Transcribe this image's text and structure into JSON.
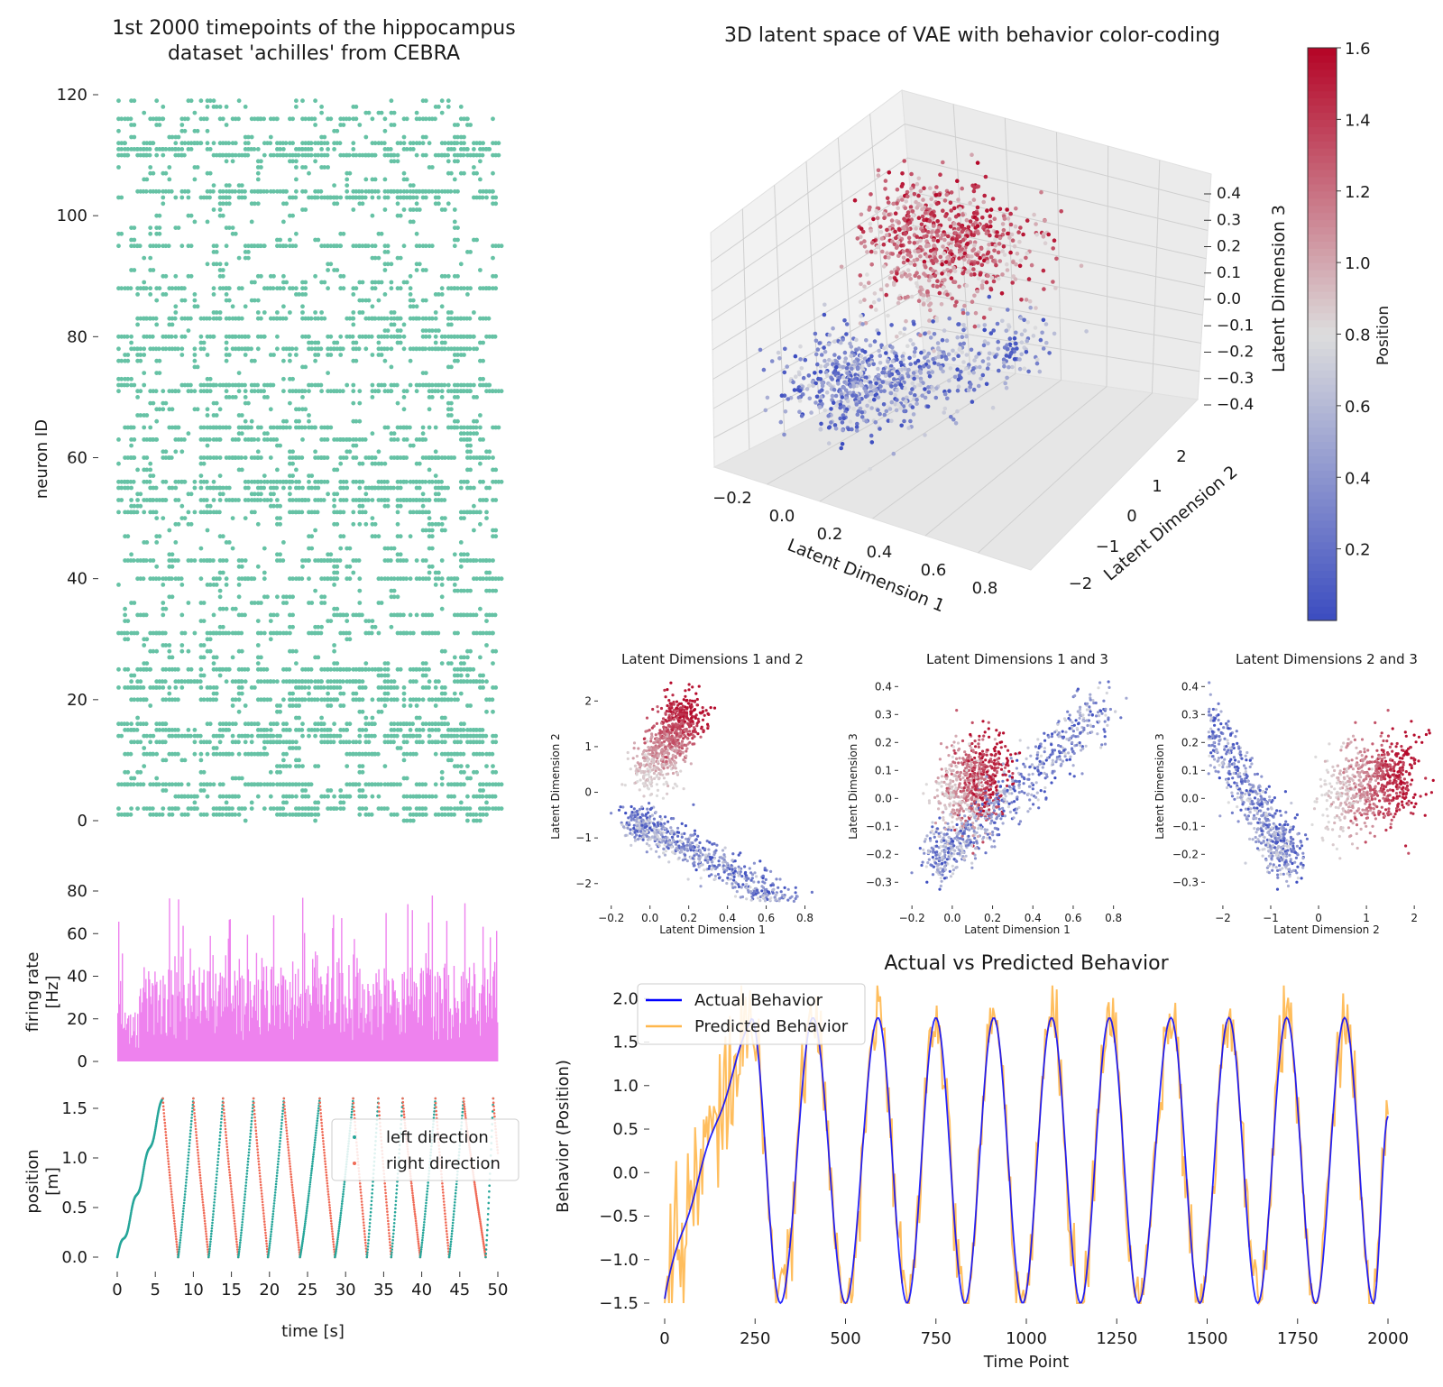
{
  "colors": {
    "raster": "#66c2a5",
    "firing": "#ee82ee",
    "left_direction": "#26a69a",
    "right_direction": "#f06b57",
    "actual": "#0000ff",
    "predicted": "#ffb74d",
    "cmap_low": "#3b4cc0",
    "cmap_mid": "#dddddd",
    "cmap_high": "#b40426"
  },
  "chart_data": [
    {
      "id": "raster",
      "type": "scatter",
      "title": "1st 2000 timepoints of the hippocampus\ndataset 'achilles' from CEBRA",
      "title_lines": [
        "1st 2000 timepoints of the hippocampus",
        "dataset 'achilles' from CEBRA"
      ],
      "xlabel": "",
      "ylabel": "neuron ID",
      "xlim": [
        0,
        50
      ],
      "ylim": [
        0,
        120
      ],
      "yticks": [
        0,
        20,
        40,
        60,
        80,
        100,
        120
      ],
      "ytick_labels": [
        "0",
        "20",
        "40",
        "60",
        "80",
        "100",
        "120"
      ],
      "dense_neurons": [
        1,
        2,
        4,
        6,
        11,
        13,
        14,
        15,
        16,
        20,
        22,
        23,
        25,
        31,
        34,
        40,
        43,
        51,
        53,
        55,
        56,
        60,
        63,
        65,
        71,
        72,
        78,
        80,
        83,
        88,
        95,
        103,
        104,
        110,
        111,
        112,
        116
      ],
      "sparse_neurons": [
        0,
        3,
        5,
        7,
        8,
        9,
        10,
        12,
        17,
        18,
        19,
        21,
        24,
        26,
        27,
        28,
        29,
        30,
        32,
        33,
        35,
        36,
        37,
        38,
        39,
        41,
        42,
        44,
        45,
        46,
        47,
        48,
        49,
        50,
        52,
        54,
        57,
        58,
        59,
        61,
        62,
        64,
        66,
        67,
        68,
        69,
        70,
        73,
        74,
        75,
        76,
        77,
        79,
        81,
        82,
        84,
        85,
        86,
        87,
        89,
        90,
        91,
        92,
        93,
        94,
        96,
        97,
        98,
        99,
        100,
        101,
        102,
        105,
        106,
        107,
        108,
        109,
        113,
        114,
        115,
        117,
        118,
        119
      ]
    },
    {
      "id": "firing",
      "type": "bar",
      "ylabel_lines": [
        "firing rate",
        "[Hz]"
      ],
      "xlim": [
        0,
        50
      ],
      "ylim": [
        0,
        80
      ],
      "yticks": [
        0,
        20,
        40,
        60,
        80
      ],
      "ytick_labels": [
        "0",
        "20",
        "40",
        "60",
        "80"
      ],
      "baseline_range_hz": [
        10,
        45
      ],
      "peak_hz": 78
    },
    {
      "id": "position",
      "type": "scatter",
      "xlabel": "time [s]",
      "ylabel_lines": [
        "position",
        "[m]"
      ],
      "xlim": [
        0,
        50
      ],
      "ylim": [
        0,
        1.6
      ],
      "xticks": [
        0,
        5,
        10,
        15,
        20,
        25,
        30,
        35,
        40,
        45,
        50
      ],
      "xtick_labels": [
        "0",
        "5",
        "10",
        "15",
        "20",
        "25",
        "30",
        "35",
        "40",
        "45",
        "50"
      ],
      "yticks": [
        0.0,
        0.5,
        1.0,
        1.5
      ],
      "ytick_labels": [
        "0.0",
        "0.5",
        "1.0",
        "1.5"
      ],
      "legend": [
        "left direction",
        "right direction"
      ],
      "legend_loc": "upper right",
      "peaks_t": [
        6.0,
        10.0,
        13.9,
        17.9,
        21.9,
        26.6,
        31.0,
        34.3,
        37.5,
        41.8,
        45.5,
        49.4
      ],
      "troughs_t": [
        0.0,
        8.0,
        12.0,
        15.9,
        19.8,
        24.0,
        28.6,
        32.8,
        36.0,
        39.8,
        43.6,
        48.4
      ],
      "max_position_m": 1.6
    },
    {
      "id": "latent3d",
      "type": "scatter",
      "title": "3D latent space of VAE with behavior color-coding",
      "xlabel": "Latent Dimension 1",
      "ylabel": "Latent Dimension 2",
      "zlabel": "Latent Dimension 3",
      "xtick_labels": [
        "−0.2",
        "0.0",
        "0.2",
        "0.4",
        "0.6",
        "0.8"
      ],
      "ytick_labels": [
        "−2",
        "−1",
        "0",
        "1",
        "2"
      ],
      "ztick_labels": [
        "−0.4",
        "−0.3",
        "−0.2",
        "−0.1",
        "0.0",
        "0.1",
        "0.2",
        "0.3",
        "0.4"
      ],
      "colorbar": {
        "label": "Position",
        "range": [
          0.0,
          1.6
        ],
        "ticks": [
          0.2,
          0.4,
          0.6,
          0.8,
          1.0,
          1.2,
          1.4,
          1.6
        ],
        "tick_labels": [
          "0.2",
          "0.4",
          "0.6",
          "0.8",
          "1.0",
          "1.2",
          "1.4",
          "1.6"
        ]
      }
    },
    {
      "id": "lat12",
      "type": "scatter",
      "title": "Latent Dimensions 1 and 2",
      "xlabel": "Latent Dimension 1",
      "ylabel": "Latent Dimension 2",
      "xlim": [
        -0.25,
        0.9
      ],
      "ylim": [
        -2.4,
        2.5
      ],
      "xticks": [
        -0.2,
        0.0,
        0.2,
        0.4,
        0.6,
        0.8
      ],
      "xtick_labels": [
        "−0.2",
        "0.0",
        "0.2",
        "0.4",
        "0.6",
        "0.8"
      ],
      "yticks": [
        -2,
        -1,
        0,
        1,
        2
      ],
      "ytick_labels": [
        "−2",
        "−1",
        "0",
        "1",
        "2"
      ]
    },
    {
      "id": "lat13",
      "type": "scatter",
      "title": "Latent Dimensions 1 and 3",
      "xlabel": "Latent Dimension 1",
      "ylabel": "Latent Dimension 3",
      "xlim": [
        -0.25,
        0.9
      ],
      "ylim": [
        -0.37,
        0.43
      ],
      "xticks": [
        -0.2,
        0.0,
        0.2,
        0.4,
        0.6,
        0.8
      ],
      "xtick_labels": [
        "−0.2",
        "0.0",
        "0.2",
        "0.4",
        "0.6",
        "0.8"
      ],
      "yticks": [
        -0.3,
        -0.2,
        -0.1,
        0.0,
        0.1,
        0.2,
        0.3,
        0.4
      ],
      "ytick_labels": [
        "−0.3",
        "−0.2",
        "−0.1",
        "0.0",
        "0.1",
        "0.2",
        "0.3",
        "0.4"
      ]
    },
    {
      "id": "lat23",
      "type": "scatter",
      "title": "Latent Dimensions 2 and 3",
      "xlabel": "Latent Dimension 2",
      "ylabel": "Latent Dimension 3",
      "xlim": [
        -2.3,
        2.6
      ],
      "ylim": [
        -0.37,
        0.43
      ],
      "xticks": [
        -2,
        -1,
        0,
        1,
        2
      ],
      "xtick_labels": [
        "−2",
        "−1",
        "0",
        "1",
        "2"
      ],
      "yticks": [
        -0.3,
        -0.2,
        -0.1,
        0.0,
        0.1,
        0.2,
        0.3,
        0.4
      ],
      "ytick_labels": [
        "−0.3",
        "−0.2",
        "−0.1",
        "0.0",
        "0.1",
        "0.2",
        "0.3",
        "0.4"
      ]
    },
    {
      "id": "behavior",
      "type": "line",
      "title": "Actual vs Predicted Behavior",
      "xlabel": "Time Point",
      "ylabel": "Behavior (Position)",
      "xlim": [
        0,
        2000
      ],
      "ylim": [
        -1.5,
        2.2
      ],
      "xticks": [
        0,
        250,
        500,
        750,
        1000,
        1250,
        1500,
        1750,
        2000
      ],
      "xtick_labels": [
        "0",
        "250",
        "500",
        "750",
        "1000",
        "1250",
        "1500",
        "1750",
        "2000"
      ],
      "yticks": [
        -1.5,
        -1.0,
        -0.5,
        0.0,
        0.5,
        1.0,
        1.5,
        2.0
      ],
      "ytick_labels": [
        "−1.5",
        "−1.0",
        "−0.5",
        "0.0",
        "0.5",
        "1.0",
        "1.5",
        "2.0"
      ],
      "legend": [
        "Actual Behavior",
        "Predicted Behavior"
      ],
      "legend_loc": "upper left",
      "peaks_t": [
        240,
        410,
        590,
        750,
        910,
        1070,
        1230,
        1400,
        1560,
        1720,
        1880
      ],
      "troughs_t": [
        0,
        320,
        500,
        670,
        830,
        990,
        1150,
        1310,
        1480,
        1640,
        1800,
        1960
      ],
      "start_value": -1.45,
      "end_value": 0.65
    }
  ]
}
